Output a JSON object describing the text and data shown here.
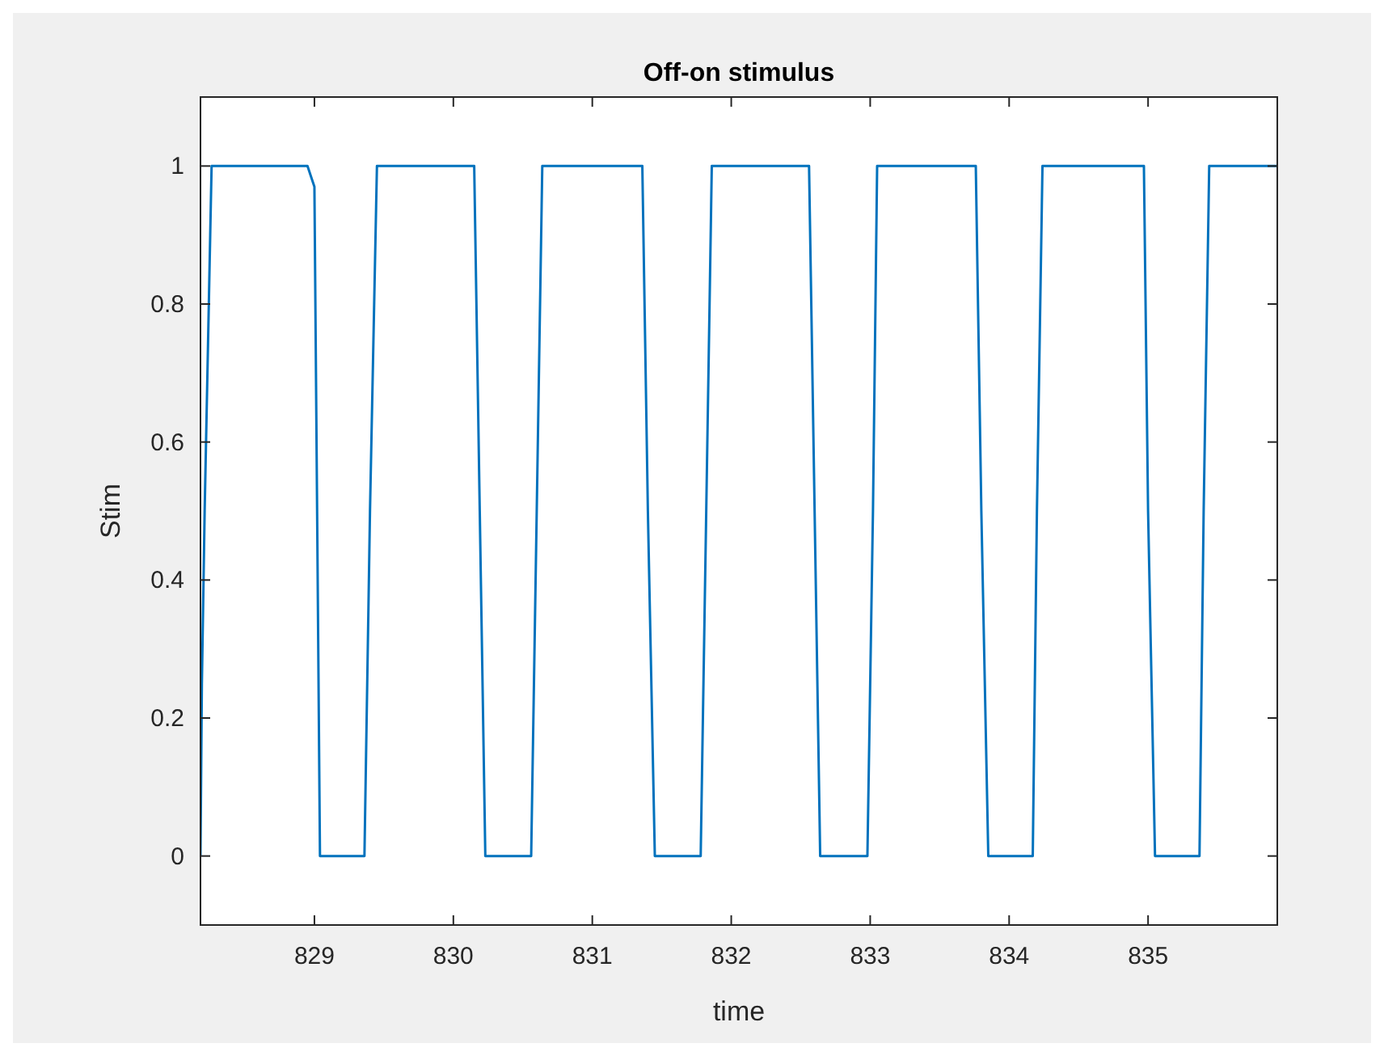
{
  "chart_data": {
    "type": "line",
    "title": "Off-on stimulus",
    "xlabel": "time",
    "ylabel": "Stim",
    "xlim": [
      828.18,
      835.93
    ],
    "ylim": [
      -0.1,
      1.1
    ],
    "xticks": [
      829,
      830,
      831,
      832,
      833,
      834,
      835
    ],
    "yticks": [
      0,
      0.2,
      0.4,
      0.6,
      0.8,
      1
    ],
    "grid": false,
    "marker": "none",
    "line_style": "solid",
    "series": [
      {
        "color": "#0072bd",
        "x": [
          828.18,
          828.19,
          828.21,
          828.23,
          828.25,
          828.26,
          828.95,
          829.0,
          829.04,
          829.36,
          829.4,
          829.45,
          830.15,
          830.19,
          830.23,
          830.56,
          830.6,
          830.64,
          831.36,
          831.4,
          831.45,
          831.78,
          831.82,
          831.86,
          832.56,
          832.6,
          832.64,
          832.98,
          833.02,
          833.05,
          833.76,
          833.8,
          833.85,
          834.17,
          834.2,
          834.24,
          834.97,
          835.0,
          835.05,
          835.37,
          835.4,
          835.44,
          835.93
        ],
        "values": [
          0,
          0.25,
          0.5,
          0.7,
          0.9,
          1,
          1,
          0.97,
          0,
          0,
          0.5,
          1,
          1,
          0.5,
          0,
          0,
          0.5,
          1,
          1,
          0.5,
          0,
          0,
          0.5,
          1,
          1,
          0.5,
          0,
          0,
          0.5,
          1,
          1,
          0.5,
          0,
          0,
          0.5,
          1,
          1,
          0.5,
          0,
          0,
          0.5,
          1,
          1
        ]
      }
    ]
  }
}
